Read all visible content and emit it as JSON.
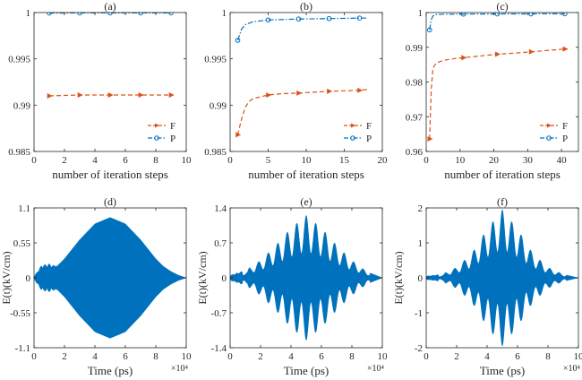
{
  "chart_data": [
    {
      "type": "line",
      "panel_label": "(a)",
      "xlabel": "number of iteration steps",
      "ylabel": "",
      "xlim": [
        0,
        10
      ],
      "ylim": [
        0.985,
        1
      ],
      "xticks": [
        0,
        2,
        4,
        6,
        8,
        10
      ],
      "yticks": [
        0.985,
        0.99,
        0.995,
        1
      ],
      "yticklabels": [
        "0.985",
        "0.99",
        "0.995",
        "1"
      ],
      "legend": "bottom-right",
      "series": [
        {
          "name": "F",
          "style": "dashed",
          "marker": "triangle",
          "color": "#D95319",
          "x": [
            1,
            3,
            5,
            7,
            9
          ],
          "y": [
            0.991,
            0.9911,
            0.9911,
            0.9911,
            0.9911
          ]
        },
        {
          "name": "P",
          "style": "dashdot",
          "marker": "circle",
          "color": "#0072BD",
          "x": [
            1,
            3,
            5,
            7,
            9
          ],
          "y": [
            0.99995,
            0.99996,
            0.99996,
            0.99996,
            0.99996
          ]
        }
      ]
    },
    {
      "type": "line",
      "panel_label": "(b)",
      "xlabel": "number of iteration steps",
      "ylabel": "",
      "xlim": [
        0,
        20
      ],
      "ylim": [
        0.985,
        1
      ],
      "xticks": [
        0,
        5,
        10,
        15,
        20
      ],
      "yticks": [
        0.985,
        0.99,
        0.995,
        1
      ],
      "yticklabels": [
        "0.985",
        "0.99",
        "0.995",
        "1"
      ],
      "legend": "bottom-right",
      "series": [
        {
          "name": "F",
          "style": "dashed",
          "marker": "triangle",
          "color": "#D95319",
          "x": [
            1,
            1.5,
            2,
            2.5,
            3,
            4,
            5,
            7,
            9,
            11,
            13,
            15,
            17,
            18
          ],
          "y": [
            0.9868,
            0.9885,
            0.9898,
            0.9904,
            0.9907,
            0.9909,
            0.9911,
            0.99125,
            0.9913,
            0.9914,
            0.9915,
            0.99155,
            0.9916,
            0.9917
          ],
          "markers_x": [
            1,
            5,
            9,
            13,
            17
          ]
        },
        {
          "name": "P",
          "style": "dashdot",
          "marker": "circle",
          "color": "#0072BD",
          "x": [
            1,
            1.5,
            2,
            3,
            4,
            5,
            7,
            9,
            13,
            17,
            18
          ],
          "y": [
            0.997,
            0.9982,
            0.9987,
            0.999,
            0.9991,
            0.9992,
            0.99925,
            0.9993,
            0.99935,
            0.9994,
            0.9994
          ],
          "markers_x": [
            1,
            5,
            9,
            13,
            17
          ]
        }
      ]
    },
    {
      "type": "line",
      "panel_label": "(c)",
      "xlabel": "number of iteration steps",
      "ylabel": "",
      "xlim": [
        0,
        45
      ],
      "ylim": [
        0.96,
        1
      ],
      "xticks": [
        0,
        10,
        20,
        30,
        40
      ],
      "yticks": [
        0.96,
        0.97,
        0.98,
        0.99,
        1
      ],
      "yticklabels": [
        "0.96",
        "0.97",
        "0.98",
        "0.99",
        "1"
      ],
      "legend": "bottom-right",
      "series": [
        {
          "name": "F",
          "style": "dashed",
          "marker": "triangle",
          "color": "#D95319",
          "x": [
            1,
            1.5,
            2,
            3,
            5,
            8,
            11,
            16,
            21,
            26,
            31,
            36,
            41
          ],
          "y": [
            0.9636,
            0.978,
            0.984,
            0.9855,
            0.9862,
            0.9867,
            0.987,
            0.9875,
            0.988,
            0.9883,
            0.9887,
            0.9891,
            0.9895
          ],
          "markers_x": [
            1,
            11,
            21,
            31,
            41
          ]
        },
        {
          "name": "P",
          "style": "dashdot",
          "marker": "circle",
          "color": "#0072BD",
          "x": [
            1,
            1.5,
            2,
            3,
            5,
            11,
            21,
            31,
            41
          ],
          "y": [
            0.995,
            0.998,
            0.999,
            0.9994,
            0.9995,
            0.99955,
            0.9996,
            0.99962,
            0.99965
          ],
          "markers_x": [
            1,
            11,
            21,
            31,
            41
          ]
        }
      ]
    },
    {
      "type": "area",
      "panel_label": "(d)",
      "xlabel": "Time (ps)",
      "ylabel": "E(t)(kV/cm)",
      "x_exponent": "×10⁴",
      "xlim": [
        0,
        10
      ],
      "ylim": [
        -1.1,
        1.1
      ],
      "xticks": [
        0,
        2,
        4,
        6,
        8,
        10
      ],
      "yticks": [
        -1.1,
        -0.55,
        0,
        0.55,
        1.1
      ],
      "yticklabels": [
        "-1.1",
        "-0.55",
        "0",
        "0.55",
        "1.1"
      ],
      "color": "#0072BD",
      "envelope": {
        "peak": 0.95,
        "center": 5.0,
        "oscillating_lobes": 0,
        "early_ripple": 0.22
      },
      "series": [
        {
          "x": [
            0,
            0.5,
            1,
            1.5,
            2,
            3,
            4,
            5,
            6,
            7,
            8,
            8.5,
            9,
            9.5,
            10
          ],
          "upper": [
            0.02,
            0.2,
            0.22,
            0.18,
            0.3,
            0.6,
            0.85,
            0.95,
            0.85,
            0.6,
            0.3,
            0.18,
            0.1,
            0.04,
            0.0
          ]
        }
      ]
    },
    {
      "type": "area",
      "panel_label": "(e)",
      "xlabel": "Time (ps)",
      "ylabel": "E(t)(kV/cm)",
      "x_exponent": "×10⁴",
      "xlim": [
        0,
        10
      ],
      "ylim": [
        -1.4,
        1.4
      ],
      "xticks": [
        0,
        2,
        4,
        6,
        8,
        10
      ],
      "yticks": [
        -1.4,
        -0.7,
        0,
        0.7,
        1.4
      ],
      "yticklabels": [
        "-1.4",
        "-0.7",
        "0",
        "0.7",
        "1.4"
      ],
      "color": "#0072BD",
      "envelope": {
        "peak": 1.25,
        "center": 5.0,
        "oscillating_lobes": 16,
        "early_ripple": 0.15
      },
      "series": [
        {
          "x": [
            0,
            1,
            2,
            3,
            4,
            5,
            6,
            7,
            8,
            9,
            10
          ],
          "upper": [
            0.05,
            0.15,
            0.35,
            0.65,
            1.0,
            1.25,
            1.0,
            0.65,
            0.35,
            0.12,
            0.0
          ]
        }
      ]
    },
    {
      "type": "area",
      "panel_label": "(f)",
      "xlabel": "Time (ps)",
      "ylabel": "E(t)(kV/cm)",
      "x_exponent": "×10⁴",
      "xlim": [
        0,
        10
      ],
      "ylim": [
        -2,
        2
      ],
      "xticks": [
        0,
        2,
        4,
        6,
        8,
        10
      ],
      "yticks": [
        -2,
        -1,
        0,
        1,
        2
      ],
      "yticklabels": [
        "-2",
        "-1",
        "0",
        "1",
        "2"
      ],
      "color": "#0072BD",
      "envelope": {
        "peak": 1.95,
        "center": 5.0,
        "oscillating_lobes": 16,
        "early_ripple": 0.1
      },
      "series": [
        {
          "x": [
            0,
            1,
            2,
            3,
            4,
            5,
            6,
            7,
            8,
            9,
            10
          ],
          "upper": [
            0.05,
            0.1,
            0.3,
            0.7,
            1.4,
            1.95,
            1.4,
            0.7,
            0.3,
            0.1,
            0.0
          ]
        }
      ]
    }
  ]
}
